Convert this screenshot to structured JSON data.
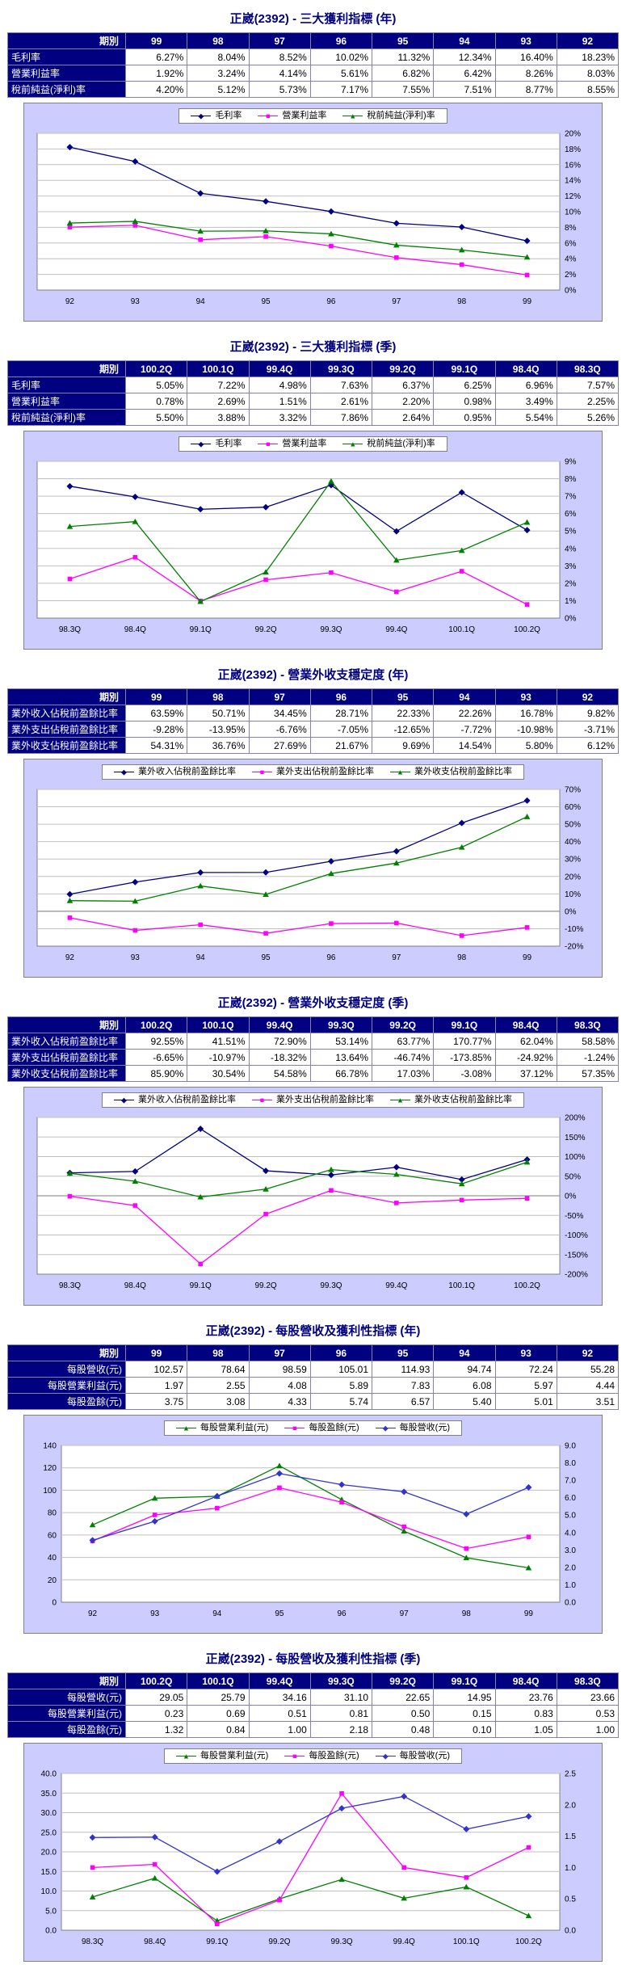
{
  "colors": {
    "title": "#000080",
    "table_header_bg": "#000080",
    "table_header_text": "#FFFFFF",
    "chart_bg": "#CCCCFF",
    "plot_bg": "#FFFFFF",
    "grid": "#c0c0c0",
    "zero_line": "#808080",
    "plot_border": "#808080"
  },
  "sections": [
    {
      "title": "正崴(2392) - 三大獲利指標 (年)",
      "table": {
        "corner_label": "期別",
        "periods": [
          "99",
          "98",
          "97",
          "96",
          "95",
          "94",
          "93",
          "92"
        ],
        "rows": [
          {
            "label": "毛利率",
            "values": [
              "6.27%",
              "8.04%",
              "8.52%",
              "10.02%",
              "11.32%",
              "12.34%",
              "16.40%",
              "18.23%"
            ]
          },
          {
            "label": "營業利益率",
            "values": [
              "1.92%",
              "3.24%",
              "4.14%",
              "5.61%",
              "6.82%",
              "6.42%",
              "8.26%",
              "8.03%"
            ]
          },
          {
            "label": "稅前純益(淨利)率",
            "values": [
              "4.20%",
              "5.12%",
              "5.73%",
              "7.17%",
              "7.55%",
              "7.51%",
              "8.77%",
              "8.55%"
            ]
          }
        ]
      },
      "chart_data": {
        "type": "line",
        "x": [
          "92",
          "93",
          "94",
          "95",
          "96",
          "97",
          "98",
          "99"
        ],
        "series": [
          {
            "name": "毛利率",
            "color": "#000080",
            "marker": "diamond",
            "axis": "right",
            "values": [
              18.23,
              16.4,
              12.34,
              11.32,
              10.02,
              8.52,
              8.04,
              6.27
            ]
          },
          {
            "name": "營業利益率",
            "color": "#FF00FF",
            "marker": "square",
            "axis": "right",
            "values": [
              8.03,
              8.26,
              6.42,
              6.82,
              5.61,
              4.14,
              3.24,
              1.92
            ]
          },
          {
            "name": "稅前純益(淨利)率",
            "color": "#008000",
            "marker": "triangle",
            "axis": "right",
            "values": [
              8.55,
              8.77,
              7.51,
              7.55,
              7.17,
              5.73,
              5.12,
              4.2
            ]
          }
        ],
        "axes": {
          "left": null,
          "right": {
            "min": 0,
            "max": 20,
            "step": 2,
            "format": "percent"
          }
        },
        "grid_axis": "right",
        "legend_position": "top"
      }
    },
    {
      "title": "正崴(2392) - 三大獲利指標 (季)",
      "table": {
        "corner_label": "期別",
        "periods": [
          "100.2Q",
          "100.1Q",
          "99.4Q",
          "99.3Q",
          "99.2Q",
          "99.1Q",
          "98.4Q",
          "98.3Q"
        ],
        "rows": [
          {
            "label": "毛利率",
            "values": [
              "5.05%",
              "7.22%",
              "4.98%",
              "7.63%",
              "6.37%",
              "6.25%",
              "6.96%",
              "7.57%"
            ]
          },
          {
            "label": "營業利益率",
            "values": [
              "0.78%",
              "2.69%",
              "1.51%",
              "2.61%",
              "2.20%",
              "0.98%",
              "3.49%",
              "2.25%"
            ]
          },
          {
            "label": "稅前純益(淨利)率",
            "values": [
              "5.50%",
              "3.88%",
              "3.32%",
              "7.86%",
              "2.64%",
              "0.95%",
              "5.54%",
              "5.26%"
            ]
          }
        ]
      },
      "chart_data": {
        "type": "line",
        "x": [
          "98.3Q",
          "98.4Q",
          "99.1Q",
          "99.2Q",
          "99.3Q",
          "99.4Q",
          "100.1Q",
          "100.2Q"
        ],
        "series": [
          {
            "name": "毛利率",
            "color": "#000080",
            "marker": "diamond",
            "axis": "right",
            "values": [
              7.57,
              6.96,
              6.25,
              6.37,
              7.63,
              4.98,
              7.22,
              5.05
            ]
          },
          {
            "name": "營業利益率",
            "color": "#FF00FF",
            "marker": "square",
            "axis": "right",
            "values": [
              2.25,
              3.49,
              0.98,
              2.2,
              2.61,
              1.51,
              2.69,
              0.78
            ]
          },
          {
            "name": "稅前純益(淨利)率",
            "color": "#008000",
            "marker": "triangle",
            "axis": "right",
            "values": [
              5.26,
              5.54,
              0.95,
              2.64,
              7.86,
              3.32,
              3.88,
              5.5
            ]
          }
        ],
        "axes": {
          "left": null,
          "right": {
            "min": 0,
            "max": 9,
            "step": 1,
            "format": "percent"
          }
        },
        "grid_axis": "right",
        "legend_position": "top"
      }
    },
    {
      "title": "正崴(2392) - 營業外收支穩定度 (年)",
      "table": {
        "corner_label": "期別",
        "periods": [
          "99",
          "98",
          "97",
          "96",
          "95",
          "94",
          "93",
          "92"
        ],
        "rows": [
          {
            "label": "業外收入佔稅前盈餘比率",
            "values": [
              "63.59%",
              "50.71%",
              "34.45%",
              "28.71%",
              "22.33%",
              "22.26%",
              "16.78%",
              "9.82%"
            ]
          },
          {
            "label": "業外支出佔稅前盈餘比率",
            "values": [
              "-9.28%",
              "-13.95%",
              "-6.76%",
              "-7.05%",
              "-12.65%",
              "-7.72%",
              "-10.98%",
              "-3.71%"
            ]
          },
          {
            "label": "業外收支佔稅前盈餘比率",
            "values": [
              "54.31%",
              "36.76%",
              "27.69%",
              "21.67%",
              "9.69%",
              "14.54%",
              "5.80%",
              "6.12%"
            ]
          }
        ]
      },
      "chart_data": {
        "type": "line",
        "x": [
          "92",
          "93",
          "94",
          "95",
          "96",
          "97",
          "98",
          "99"
        ],
        "series": [
          {
            "name": "業外收入佔稅前盈餘比率",
            "color": "#000080",
            "marker": "diamond",
            "axis": "right",
            "values": [
              9.82,
              16.78,
              22.26,
              22.33,
              28.71,
              34.45,
              50.71,
              63.59
            ]
          },
          {
            "name": "業外支出佔稅前盈餘比率",
            "color": "#FF00FF",
            "marker": "square",
            "axis": "right",
            "values": [
              -3.71,
              -10.98,
              -7.72,
              -12.65,
              -7.05,
              -6.76,
              -13.95,
              -9.28
            ]
          },
          {
            "name": "業外收支佔稅前盈餘比率",
            "color": "#008000",
            "marker": "triangle",
            "axis": "right",
            "values": [
              6.12,
              5.8,
              14.54,
              9.69,
              21.67,
              27.69,
              36.76,
              54.31
            ]
          }
        ],
        "axes": {
          "left": null,
          "right": {
            "min": -20,
            "max": 70,
            "step": 10,
            "format": "percent"
          }
        },
        "grid_axis": "right",
        "legend_position": "top"
      }
    },
    {
      "title": "正崴(2392) - 營業外收支穩定度 (季)",
      "table": {
        "corner_label": "期別",
        "periods": [
          "100.2Q",
          "100.1Q",
          "99.4Q",
          "99.3Q",
          "99.2Q",
          "99.1Q",
          "98.4Q",
          "98.3Q"
        ],
        "rows": [
          {
            "label": "業外收入佔稅前盈餘比率",
            "values": [
              "92.55%",
              "41.51%",
              "72.90%",
              "53.14%",
              "63.77%",
              "170.77%",
              "62.04%",
              "58.58%"
            ]
          },
          {
            "label": "業外支出佔稅前盈餘比率",
            "values": [
              "-6.65%",
              "-10.97%",
              "-18.32%",
              "13.64%",
              "-46.74%",
              "-173.85%",
              "-24.92%",
              "-1.24%"
            ]
          },
          {
            "label": "業外收支佔稅前盈餘比率",
            "values": [
              "85.90%",
              "30.54%",
              "54.58%",
              "66.78%",
              "17.03%",
              "-3.08%",
              "37.12%",
              "57.35%"
            ]
          }
        ]
      },
      "chart_data": {
        "type": "line",
        "x": [
          "98.3Q",
          "98.4Q",
          "99.1Q",
          "99.2Q",
          "99.3Q",
          "99.4Q",
          "100.1Q",
          "100.2Q"
        ],
        "series": [
          {
            "name": "業外收入佔稅前盈餘比率",
            "color": "#000080",
            "marker": "diamond",
            "axis": "right",
            "values": [
              58.58,
              62.04,
              170.77,
              63.77,
              53.14,
              72.9,
              41.51,
              92.55
            ]
          },
          {
            "name": "業外支出佔稅前盈餘比率",
            "color": "#FF00FF",
            "marker": "square",
            "axis": "right",
            "values": [
              -1.24,
              -24.92,
              -173.85,
              -46.74,
              13.64,
              -18.32,
              -10.97,
              -6.65
            ]
          },
          {
            "name": "業外收支佔稅前盈餘比率",
            "color": "#008000",
            "marker": "triangle",
            "axis": "right",
            "values": [
              57.35,
              37.12,
              -3.08,
              17.03,
              66.78,
              54.58,
              30.54,
              85.9
            ]
          }
        ],
        "axes": {
          "left": null,
          "right": {
            "min": -200,
            "max": 200,
            "step": 50,
            "format": "percent"
          }
        },
        "grid_axis": "right",
        "legend_position": "top"
      }
    },
    {
      "title": "正崴(2392) - 每股營收及獲利性指標 (年)",
      "table": {
        "corner_label": "期別",
        "periods": [
          "99",
          "98",
          "97",
          "96",
          "95",
          "94",
          "93",
          "92"
        ],
        "rows": [
          {
            "label": "每股營收(元)",
            "values": [
              "102.57",
              "78.64",
              "98.59",
              "105.01",
              "114.93",
              "94.74",
              "72.24",
              "55.28"
            ]
          },
          {
            "label": "每股營業利益(元)",
            "values": [
              "1.97",
              "2.55",
              "4.08",
              "5.89",
              "7.83",
              "6.08",
              "5.97",
              "4.44"
            ]
          },
          {
            "label": "每股盈餘(元)",
            "values": [
              "3.75",
              "3.08",
              "4.33",
              "5.74",
              "6.57",
              "5.40",
              "5.01",
              "3.51"
            ]
          }
        ]
      },
      "chart_data": {
        "type": "line",
        "x": [
          "92",
          "93",
          "94",
          "95",
          "96",
          "97",
          "98",
          "99"
        ],
        "series": [
          {
            "name": "每股營業利益(元)",
            "color": "#008000",
            "marker": "triangle",
            "axis": "right",
            "values": [
              4.44,
              5.97,
              6.08,
              7.83,
              5.89,
              4.08,
              2.55,
              1.97
            ]
          },
          {
            "name": "每股盈餘(元)",
            "color": "#FF00FF",
            "marker": "square",
            "axis": "right",
            "values": [
              3.51,
              5.01,
              5.4,
              6.57,
              5.74,
              4.33,
              3.08,
              3.75
            ]
          },
          {
            "name": "每股營收(元)",
            "color": "#3333CC",
            "marker": "diamond",
            "axis": "left",
            "values": [
              55.28,
              72.24,
              94.74,
              114.93,
              105.01,
              98.59,
              78.64,
              102.57
            ]
          }
        ],
        "axes": {
          "left": {
            "min": 0,
            "max": 140,
            "step": 20,
            "format": "int"
          },
          "right": {
            "min": 0,
            "max": 9,
            "step": 1,
            "format": "dec1"
          }
        },
        "grid_axis": "left",
        "legend_position": "top"
      }
    },
    {
      "title": "正崴(2392) - 每股營收及獲利性指標 (季)",
      "table": {
        "corner_label": "期別",
        "periods": [
          "100.2Q",
          "100.1Q",
          "99.4Q",
          "99.3Q",
          "99.2Q",
          "99.1Q",
          "98.4Q",
          "98.3Q"
        ],
        "rows": [
          {
            "label": "每股營收(元)",
            "values": [
              "29.05",
              "25.79",
              "34.16",
              "31.10",
              "22.65",
              "14.95",
              "23.76",
              "23.66"
            ]
          },
          {
            "label": "每股營業利益(元)",
            "values": [
              "0.23",
              "0.69",
              "0.51",
              "0.81",
              "0.50",
              "0.15",
              "0.83",
              "0.53"
            ]
          },
          {
            "label": "每股盈餘(元)",
            "values": [
              "1.32",
              "0.84",
              "1.00",
              "2.18",
              "0.48",
              "0.10",
              "1.05",
              "1.00"
            ]
          }
        ]
      },
      "chart_data": {
        "type": "line",
        "x": [
          "98.3Q",
          "98.4Q",
          "99.1Q",
          "99.2Q",
          "99.3Q",
          "99.4Q",
          "100.1Q",
          "100.2Q"
        ],
        "series": [
          {
            "name": "每股營業利益(元)",
            "color": "#008000",
            "marker": "triangle",
            "axis": "right",
            "values": [
              0.53,
              0.83,
              0.15,
              0.5,
              0.81,
              0.51,
              0.69,
              0.23
            ]
          },
          {
            "name": "每股盈餘(元)",
            "color": "#FF00FF",
            "marker": "square",
            "axis": "right",
            "values": [
              1.0,
              1.05,
              0.1,
              0.48,
              2.18,
              1.0,
              0.84,
              1.32
            ]
          },
          {
            "name": "每股營收(元)",
            "color": "#3333CC",
            "marker": "diamond",
            "axis": "left",
            "values": [
              23.66,
              23.76,
              14.95,
              22.65,
              31.1,
              34.16,
              25.79,
              29.05
            ]
          }
        ],
        "axes": {
          "left": {
            "min": 0,
            "max": 40,
            "step": 5,
            "format": "dec1"
          },
          "right": {
            "min": 0,
            "max": 2.5,
            "step": 0.5,
            "format": "dec1"
          }
        },
        "grid_axis": "left",
        "legend_position": "top"
      }
    }
  ]
}
